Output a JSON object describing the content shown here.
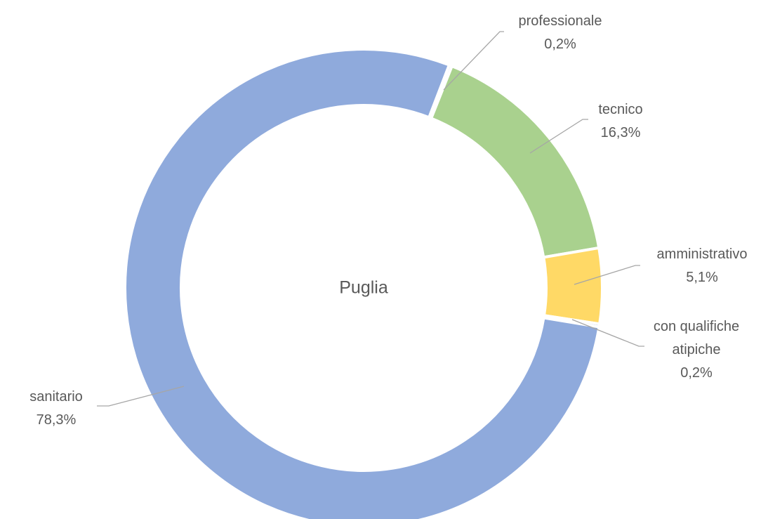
{
  "chart_data": {
    "type": "donut",
    "title": "Puglia",
    "categories": [
      "professionale",
      "tecnico",
      "amministrativo",
      "con qualifiche atipiche",
      "sanitario"
    ],
    "values": [
      0.2,
      16.3,
      5.1,
      0.2,
      78.3
    ],
    "value_labels": [
      "0,2%",
      "16,3%",
      "5,1%",
      "0,2%",
      "78,3%"
    ],
    "colors": [
      "#8faadc",
      "#a9d18e",
      "#ffd966",
      "#8faadc",
      "#8faadc"
    ]
  }
}
